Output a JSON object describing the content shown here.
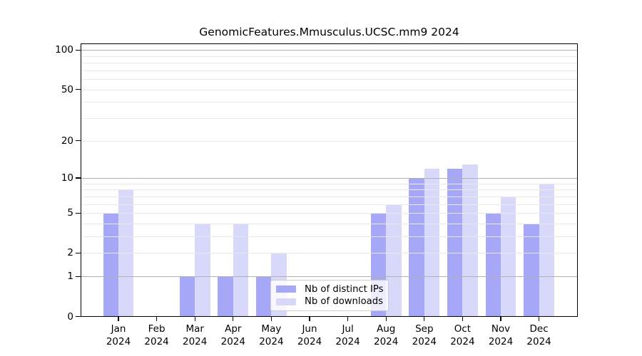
{
  "chart_data": {
    "type": "bar",
    "title": "GenomicFeatures.Mmusculus.UCSC.mm9 2024",
    "categories": [
      "Jan",
      "Feb",
      "Mar",
      "Apr",
      "May",
      "Jun",
      "Jul",
      "Aug",
      "Sep",
      "Oct",
      "Nov",
      "Dec"
    ],
    "year": "2024",
    "series": [
      {
        "name": "Nb of distinct IPs",
        "key": "distinct-ips",
        "color": "#a7a7f8",
        "values": [
          5,
          0,
          1,
          1,
          1,
          0,
          0,
          5,
          10,
          12,
          5,
          4
        ]
      },
      {
        "name": "Nb of downloads",
        "key": "downloads",
        "color": "#d8d8fa",
        "values": [
          8,
          0,
          4,
          4,
          2,
          0,
          0,
          6,
          12,
          13,
          7,
          9
        ]
      }
    ],
    "y_axis": {
      "scale": "log10(1+x)",
      "ticks": [
        0,
        1,
        2,
        5,
        10,
        20,
        50,
        100
      ],
      "major_gridlines": [
        1,
        10,
        100
      ],
      "minor_gridlines": [
        2,
        3,
        4,
        5,
        6,
        7,
        8,
        9,
        20,
        30,
        40,
        50,
        60,
        70,
        80,
        90
      ],
      "ylim": [
        0,
        112
      ]
    },
    "grid_major_color": "#b1b1b1",
    "grid_minor_color": "#e9e9e9",
    "legend_position": "lower-center"
  },
  "legend": {
    "items": [
      {
        "label": "Nb of distinct IPs",
        "color": "#a7a7f8"
      },
      {
        "label": "Nb of downloads",
        "color": "#d8d8fa"
      }
    ]
  }
}
